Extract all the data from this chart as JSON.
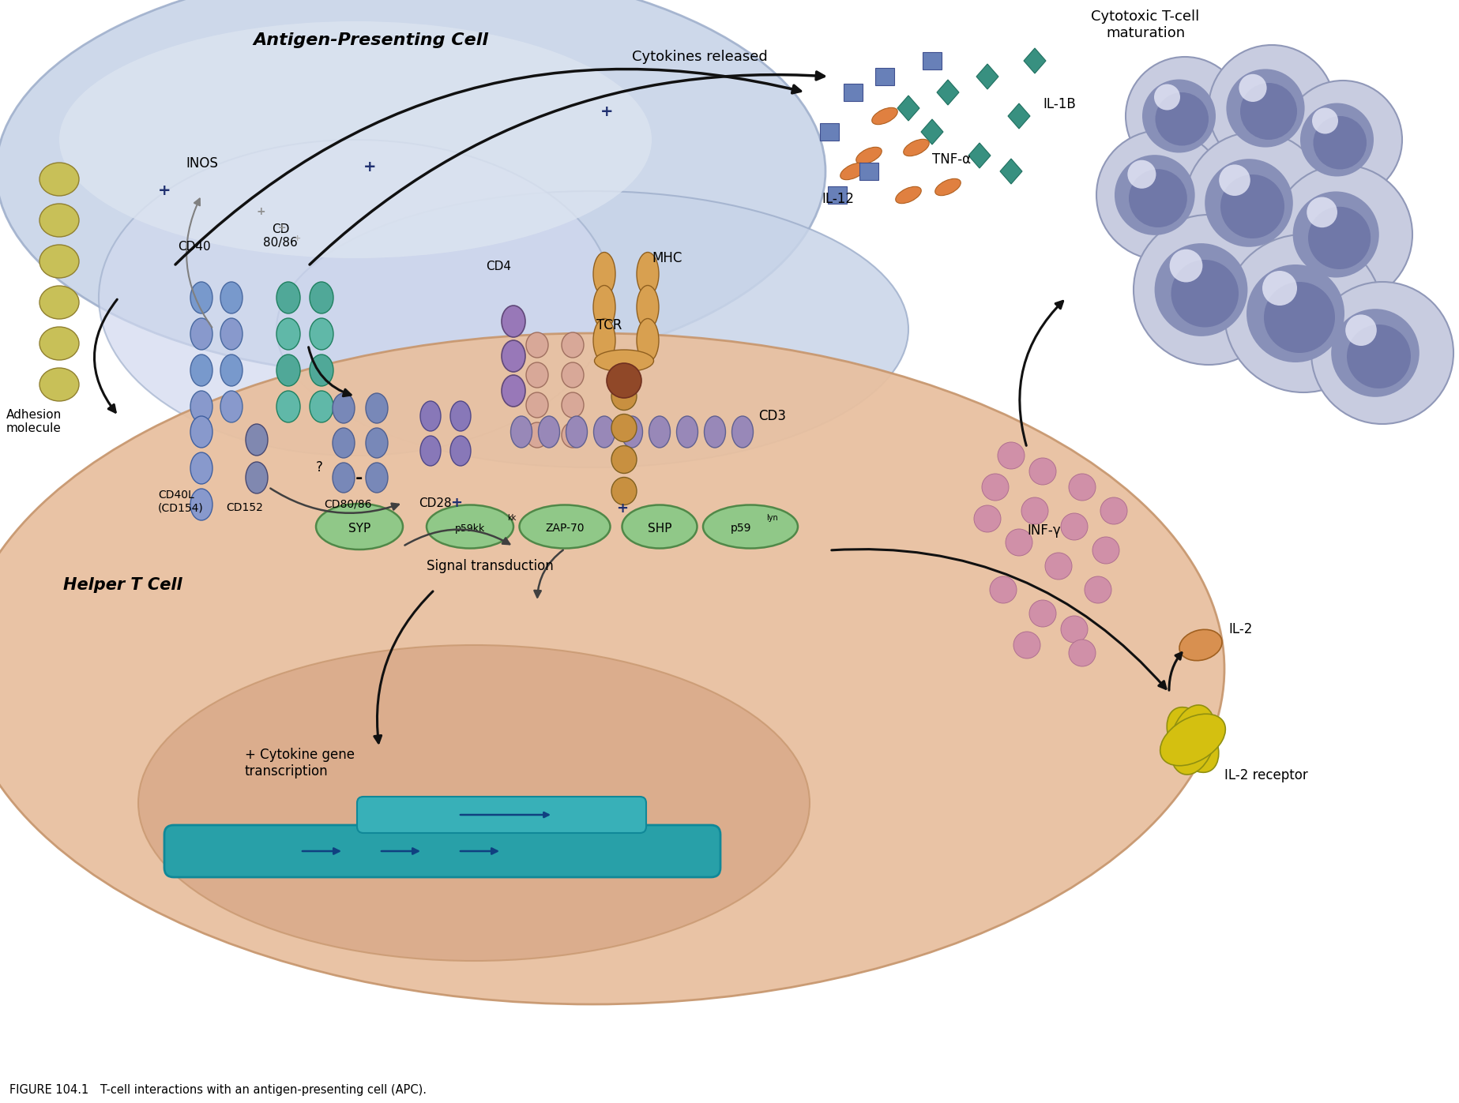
{
  "bg_color": "#FFFFFF",
  "apc_blob_color": "#C8D4E8",
  "apc_blob_outline": "#A0B0CC",
  "helper_cell_color": "#E8C0A0",
  "helper_cell_outline": "#C89870",
  "helper_nucleus_color": "#D8A888",
  "apc_label": "Antigen-Presenting Cell",
  "helper_label": "Helper T Cell",
  "cytokines_label": "Cytokines released",
  "cytotoxic_label": "Cytotoxic T-cell\nmaturation",
  "inos_label": "INOS",
  "adhesion_label": "Adhesion\nmolecule",
  "cd40_label": "CD40",
  "cd8086_top_label": "CD\n80/86",
  "cd8086_bot_label": "CD80/86",
  "cd40l_label": "CD40L\n(CD154)",
  "cd152_label": "CD152",
  "cd28_label": "CD28",
  "cd4_label": "CD4",
  "mhc_label": "MHC",
  "tcr_label": "TCR",
  "cd3_label": "CD3",
  "syp_label": "SYP",
  "p59kk_label": "p59kk",
  "zap70_label": "ZAP-70",
  "shp_label": "SHP",
  "p59lyn_label": "p59lyn",
  "signal_label": "Signal transduction",
  "cytokine_gene_label": "+ Cytokine gene\ntranscription",
  "il1b_label": "IL-1B",
  "tnf_label": "TNF-α",
  "il12_label": "IL-12",
  "inf_label": "INF-γ",
  "il2_label": "IL-2",
  "il2r_label": "IL-2 receptor",
  "cd40_color1": "#7899CC",
  "cd40_color2": "#8899CC",
  "cd8086_top_color1": "#50A898",
  "cd8086_top_color2": "#60B8A8",
  "cd8086_bot_color1": "#7888B8",
  "cd8086_bot_color2": "#8898C8",
  "cd40l_color": "#8899CC",
  "cd152_color": "#8088B0",
  "cd28_color": "#8878B8",
  "cd4_color": "#9878B8",
  "cd3_color": "#9888B8",
  "tcr_color": "#D8A898",
  "mhc_color": "#D8A050",
  "mhc_stem_color": "#C89040",
  "mhc_ball_color": "#904828",
  "adhesion_color": "#C8C058",
  "syp_fill": "#90C888",
  "syp_outline": "#508848",
  "p59_fill": "#90C888",
  "p59_outline": "#508848",
  "zap_fill": "#90C888",
  "zap_outline": "#508848",
  "shp_fill": "#90C888",
  "shp_outline": "#508848",
  "il1b_diamond": "#389080",
  "tnf_oval": "#E08040",
  "il12_square": "#6880B8",
  "inf_dot": "#D090A8",
  "il2_oval": "#D89050",
  "il2r_color": "#D4C010",
  "tcell_color": "#B8C0D8",
  "dna_bar_color": "#28A0A8",
  "dna_top_color": "#38B0B8",
  "arrow_color": "#111111",
  "arrow_lw": 2.2,
  "plus_color": "#203070",
  "gray_color": "#888888"
}
